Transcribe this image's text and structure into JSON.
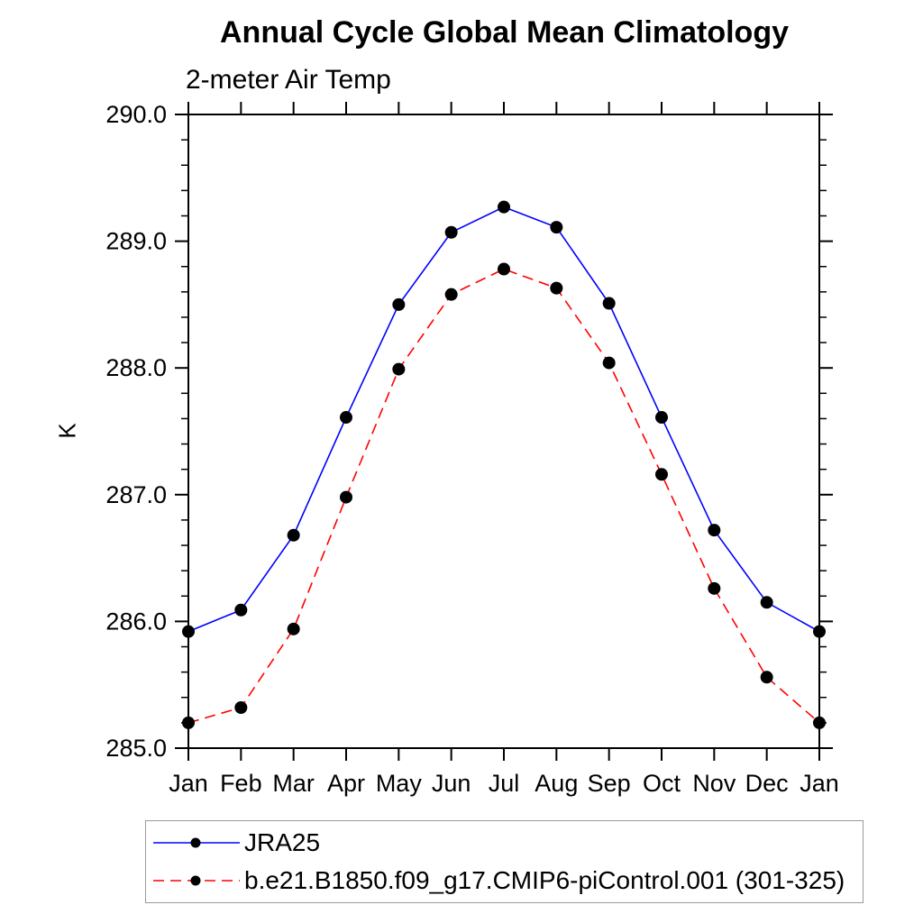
{
  "chart_data": {
    "type": "line",
    "title": "Annual Cycle Global Mean Climatology",
    "subtitle": "2-meter Air Temp",
    "ylabel": "K",
    "xlabel": "",
    "categories": [
      "Jan",
      "Feb",
      "Mar",
      "Apr",
      "May",
      "Jun",
      "Jul",
      "Aug",
      "Sep",
      "Oct",
      "Nov",
      "Dec",
      "Jan"
    ],
    "ylim": [
      285.0,
      290.0
    ],
    "ytick_major_step": 1.0,
    "ytick_minor_step": 0.2,
    "ytick_labels": [
      "285.0",
      "286.0",
      "287.0",
      "288.0",
      "289.0",
      "290.0"
    ],
    "grid": false,
    "legend_position": "bottom-left-box",
    "series": [
      {
        "name": "JRA25",
        "color": "#0000ff",
        "line_style": "solid",
        "marker": "filled-circle",
        "marker_color": "#000000",
        "values": [
          285.92,
          286.09,
          286.68,
          287.61,
          288.5,
          289.07,
          289.27,
          289.11,
          288.51,
          287.61,
          286.72,
          286.15,
          285.92
        ]
      },
      {
        "name": "b.e21.B1850.f09_g17.CMIP6-piControl.001 (301-325)",
        "color": "#ff0000",
        "line_style": "dashed",
        "marker": "filled-circle",
        "marker_color": "#000000",
        "values": [
          285.2,
          285.32,
          285.94,
          286.98,
          287.99,
          288.58,
          288.78,
          288.63,
          288.04,
          287.16,
          286.26,
          285.56,
          285.2
        ]
      }
    ]
  },
  "colors": {
    "axis": "#000000",
    "marker": "#000000",
    "series_blue": "#0000ff",
    "series_red": "#ff0000",
    "legend_border": "#9a9a9a",
    "background": "#ffffff"
  }
}
